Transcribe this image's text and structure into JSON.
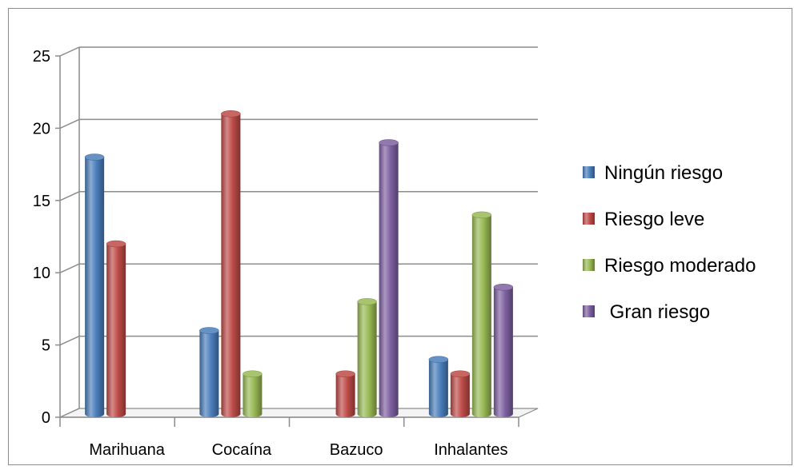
{
  "chart_data": {
    "type": "bar",
    "title": "",
    "xlabel": "",
    "ylabel": "",
    "categories": [
      "Marihuana",
      "Cocaína",
      "Bazuco",
      "Inhalantes"
    ],
    "y_ticks": [
      "0",
      "5",
      "10",
      "15",
      "20",
      "25"
    ],
    "ylim": [
      0,
      25
    ],
    "grid": true,
    "legend_position": "right",
    "series": [
      {
        "name": "Ningún riesgo",
        "color": "#4a7ebb",
        "values": [
          18,
          6,
          0,
          4
        ]
      },
      {
        "name": "Riesgo leve",
        "color": "#be4b48",
        "values": [
          12,
          21,
          3,
          3
        ]
      },
      {
        "name": "Riesgo moderado",
        "color": "#98b954",
        "values": [
          0,
          3,
          8,
          14
        ]
      },
      {
        "name": " Gran riesgo",
        "color": "#7d60a0",
        "values": [
          0,
          0,
          19,
          9
        ]
      }
    ]
  }
}
